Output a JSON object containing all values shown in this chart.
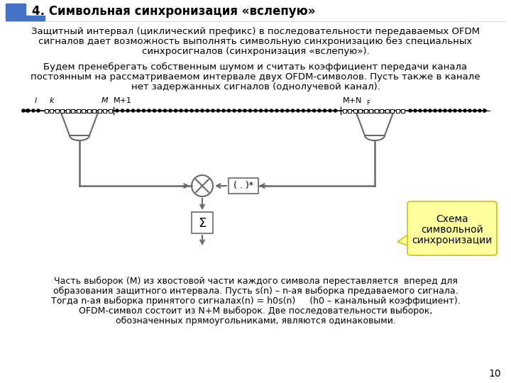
{
  "title": "4. Символьная синхронизация «вслепую»",
  "bg_color": "#ffffff",
  "text_color": "#000000",
  "line_color": "#696969",
  "box_color": "#ffff99",
  "para1_line1": "Защитный интервал (циклический префикс) в последовательности передаваемых OFDM",
  "para1_line2": "сигналов дает возможность выполнять символьную синхронизацию без специальных",
  "para1_line3": "синхросигналов (",
  "para1_line3_bold": "синхронизация «вслепую»",
  "para1_line3_end": ").",
  "para2_line1": "Будем пренебрегать собственным шумом и считать коэффициент передачи канала",
  "para2_line2": "постоянным на рассматриваемом интервале двух OFDM-символов. Пусть также в канале",
  "para2_line3": "нет задержанных сигналов (однолучевой канал).",
  "label_l": "l",
  "label_k": "k",
  "label_M": "M",
  "label_M1": "M+1",
  "label_MNF": "M+N",
  "label_F": "F",
  "box_label1": "Схема",
  "box_label2": "символьной",
  "box_label3": "синхронизации",
  "conj_label": "( . )*",
  "sum_label": "Σ",
  "bottom_line1": "Часть выборок (М) из хвостовой части каждого символа переставляется  вперед для",
  "bottom_line2": "образования защитного интервала. Пусть s(n) – n-ая выборка предаваемого сигнала.",
  "bottom_line3a": "Тогда ",
  "bottom_line3b": "n",
  "bottom_line3c": "-ая выборка принятого сигнала",
  "bottom_line3d": "x(n) = h",
  "bottom_line3e": "0",
  "bottom_line3f": "s(n)",
  "bottom_line3g": "     (h",
  "bottom_line3h": "0",
  "bottom_line3i": " – канальный коэффициент).",
  "bottom_line4": "OFDM-символ состоит из N+M выборок. Две последовательности выборок,",
  "bottom_line5": "обозначенных прямоугольниками, являются одинаковыми.",
  "page_num": "10",
  "badge_color": "#4472C4",
  "callout_bg": "#ffffa0",
  "callout_border": "#c8c800"
}
